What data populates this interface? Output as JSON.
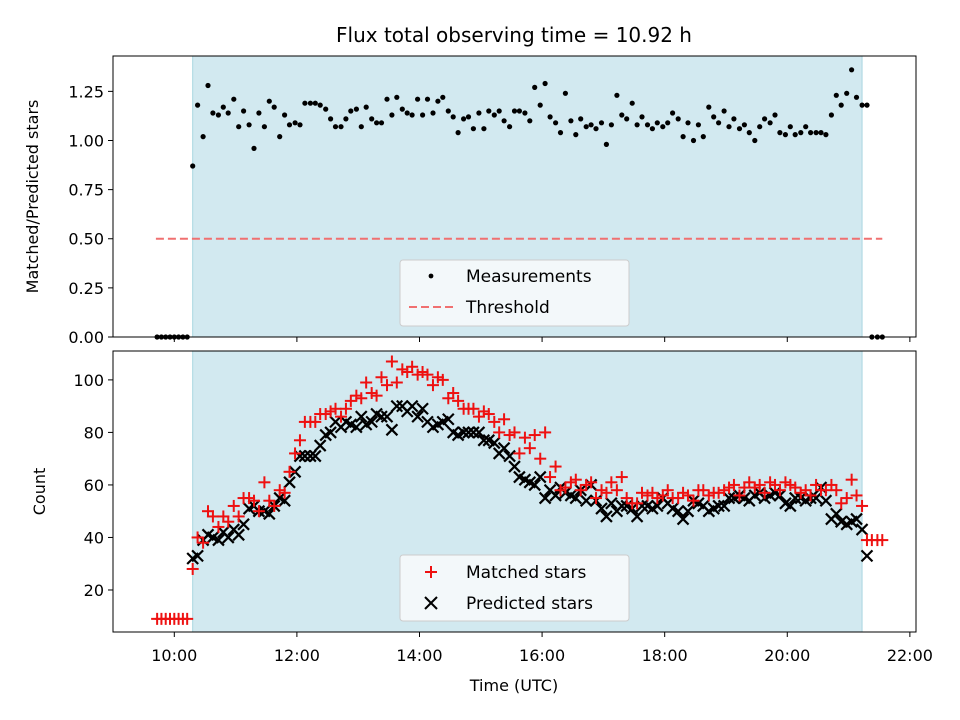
{
  "figure": {
    "title": "Flux total observing time = 10.92 h"
  },
  "colors": {
    "observing_window": "#d2e9f0",
    "observing_window_edge": "#a9d6e0",
    "measurements": "#000000",
    "threshold": "#f07070",
    "matched": "#ee1111",
    "predicted": "#000000"
  },
  "chart_data": [
    {
      "type": "scatter",
      "ylabel": "Matched/Predicted stars",
      "xlabel": "",
      "x_unit": "hours (UTC)",
      "xlim": [
        9.0,
        22.1
      ],
      "ylim": [
        0.0,
        1.43
      ],
      "yticks": [
        "0.00",
        "0.25",
        "0.50",
        "0.75",
        "1.00",
        "1.25"
      ],
      "grid": false,
      "legend": {
        "placement": "lower-center",
        "entries": [
          "Measurements",
          "Threshold"
        ]
      },
      "observing_window": [
        10.3,
        21.22
      ],
      "threshold": {
        "name": "Threshold",
        "value": 0.5,
        "x_range": [
          9.7,
          21.55
        ]
      },
      "series": [
        {
          "name": "Measurements",
          "x": [
            9.72,
            9.79,
            9.86,
            9.93,
            10.0,
            10.07,
            10.14,
            10.21,
            10.3,
            10.38,
            10.47,
            10.55,
            10.63,
            10.72,
            10.8,
            10.88,
            10.97,
            11.05,
            11.13,
            11.22,
            11.3,
            11.38,
            11.47,
            11.55,
            11.63,
            11.72,
            11.8,
            11.88,
            11.97,
            12.05,
            12.13,
            12.22,
            12.3,
            12.38,
            12.47,
            12.55,
            12.63,
            12.72,
            12.8,
            12.88,
            12.97,
            13.05,
            13.13,
            13.22,
            13.3,
            13.38,
            13.47,
            13.55,
            13.63,
            13.72,
            13.8,
            13.88,
            13.97,
            14.05,
            14.13,
            14.22,
            14.3,
            14.38,
            14.47,
            14.55,
            14.63,
            14.72,
            14.8,
            14.88,
            14.97,
            15.05,
            15.13,
            15.22,
            15.3,
            15.38,
            15.47,
            15.55,
            15.63,
            15.72,
            15.8,
            15.88,
            15.97,
            16.05,
            16.13,
            16.22,
            16.3,
            16.38,
            16.47,
            16.55,
            16.63,
            16.72,
            16.8,
            16.88,
            16.97,
            17.05,
            17.13,
            17.22,
            17.3,
            17.38,
            17.47,
            17.55,
            17.63,
            17.72,
            17.8,
            17.88,
            17.97,
            18.05,
            18.13,
            18.22,
            18.3,
            18.38,
            18.47,
            18.55,
            18.63,
            18.72,
            18.8,
            18.88,
            18.97,
            19.05,
            19.13,
            19.22,
            19.3,
            19.38,
            19.47,
            19.55,
            19.63,
            19.72,
            19.8,
            19.88,
            19.97,
            20.05,
            20.13,
            20.22,
            20.3,
            20.38,
            20.47,
            20.55,
            20.63,
            20.72,
            20.8,
            20.88,
            20.97,
            21.05,
            21.13,
            21.22,
            21.3,
            21.38,
            21.47,
            21.55
          ],
          "y": [
            0,
            0,
            0,
            0,
            0,
            0,
            0,
            0,
            0.87,
            1.18,
            1.02,
            1.28,
            1.14,
            1.13,
            1.17,
            1.14,
            1.21,
            1.07,
            1.15,
            1.08,
            0.96,
            1.14,
            1.07,
            1.2,
            1.17,
            1.02,
            1.13,
            1.08,
            1.09,
            1.08,
            1.19,
            1.19,
            1.19,
            1.18,
            1.16,
            1.11,
            1.07,
            1.07,
            1.11,
            1.15,
            1.16,
            1.07,
            1.17,
            1.11,
            1.09,
            1.09,
            1.21,
            1.13,
            1.22,
            1.16,
            1.14,
            1.13,
            1.21,
            1.13,
            1.21,
            1.14,
            1.2,
            1.22,
            1.15,
            1.12,
            1.04,
            1.11,
            1.12,
            1.06,
            1.14,
            1.06,
            1.15,
            1.13,
            1.15,
            1.1,
            1.07,
            1.15,
            1.15,
            1.14,
            1.1,
            1.27,
            1.18,
            1.29,
            1.12,
            1.09,
            1.04,
            1.24,
            1.1,
            1.03,
            1.11,
            1.07,
            1.08,
            1.06,
            1.09,
            0.98,
            1.08,
            1.23,
            1.13,
            1.11,
            1.19,
            1.08,
            1.12,
            1.08,
            1.06,
            1.09,
            1.07,
            1.09,
            1.14,
            1.11,
            1.02,
            1.09,
            1.0,
            1.08,
            1.02,
            1.17,
            1.12,
            1.09,
            1.15,
            1.07,
            1.11,
            1.06,
            1.08,
            1.04,
            1.0,
            1.07,
            1.11,
            1.09,
            1.13,
            1.04,
            1.03,
            1.07,
            1.03,
            1.04,
            1.07,
            1.04,
            1.04,
            1.04,
            1.03,
            1.13,
            1.23,
            1.18,
            1.24,
            1.36,
            1.22,
            1.18,
            1.18,
            0,
            0,
            0
          ]
        }
      ]
    },
    {
      "type": "scatter",
      "ylabel": "Count",
      "xlabel": "Time (UTC)",
      "x_unit": "hours (UTC)",
      "xlim": [
        9.0,
        22.1
      ],
      "ylim": [
        4,
        111
      ],
      "yticks": [
        "20",
        "40",
        "60",
        "80",
        "100"
      ],
      "xticks": [
        "10:00",
        "12:00",
        "14:00",
        "16:00",
        "18:00",
        "20:00",
        "22:00"
      ],
      "xtick_values": [
        10,
        12,
        14,
        16,
        18,
        20,
        22
      ],
      "grid": false,
      "legend": {
        "placement": "lower-center",
        "entries": [
          "Matched stars",
          "Predicted stars"
        ]
      },
      "observing_window": [
        10.3,
        21.22
      ],
      "x": [
        9.72,
        9.79,
        9.86,
        9.93,
        10.0,
        10.07,
        10.14,
        10.21,
        10.3,
        10.38,
        10.47,
        10.55,
        10.63,
        10.72,
        10.8,
        10.88,
        10.97,
        11.05,
        11.13,
        11.22,
        11.3,
        11.38,
        11.47,
        11.55,
        11.63,
        11.72,
        11.8,
        11.88,
        11.97,
        12.05,
        12.13,
        12.22,
        12.3,
        12.38,
        12.47,
        12.55,
        12.63,
        12.72,
        12.8,
        12.88,
        12.97,
        13.05,
        13.13,
        13.22,
        13.3,
        13.38,
        13.47,
        13.55,
        13.63,
        13.72,
        13.8,
        13.88,
        13.97,
        14.05,
        14.13,
        14.22,
        14.3,
        14.38,
        14.47,
        14.55,
        14.63,
        14.72,
        14.8,
        14.88,
        14.97,
        15.05,
        15.13,
        15.22,
        15.3,
        15.38,
        15.47,
        15.55,
        15.63,
        15.72,
        15.8,
        15.88,
        15.97,
        16.05,
        16.13,
        16.22,
        16.3,
        16.38,
        16.47,
        16.55,
        16.63,
        16.72,
        16.8,
        16.88,
        16.97,
        17.05,
        17.13,
        17.22,
        17.3,
        17.38,
        17.47,
        17.55,
        17.63,
        17.72,
        17.8,
        17.88,
        17.97,
        18.05,
        18.13,
        18.22,
        18.3,
        18.38,
        18.47,
        18.55,
        18.63,
        18.72,
        18.8,
        18.88,
        18.97,
        19.05,
        19.13,
        19.22,
        19.3,
        19.38,
        19.47,
        19.55,
        19.63,
        19.72,
        19.8,
        19.88,
        19.97,
        20.05,
        20.13,
        20.22,
        20.3,
        20.38,
        20.47,
        20.55,
        20.63,
        20.72,
        20.8,
        20.88,
        20.97,
        21.05,
        21.13,
        21.22,
        21.3,
        21.38,
        21.47,
        21.55
      ],
      "series": [
        {
          "name": "Matched stars",
          "marker": "+",
          "values": [
            9,
            9,
            9,
            9,
            9,
            9,
            9,
            9,
            28,
            40,
            38,
            50,
            48,
            44,
            48,
            46,
            52,
            48,
            55,
            55,
            54,
            50,
            61,
            54,
            52,
            58,
            57,
            65,
            72,
            77,
            84,
            84,
            84,
            87,
            87,
            88,
            89,
            86,
            89,
            92,
            94,
            93,
            99,
            95,
            94,
            101,
            98,
            107,
            99,
            104,
            103,
            105,
            102,
            103,
            102,
            98,
            101,
            100,
            93,
            95,
            92,
            89,
            89,
            89,
            86,
            88,
            87,
            84,
            80,
            85,
            79,
            80,
            72,
            78,
            74,
            79,
            70,
            80,
            63,
            67,
            58,
            59,
            61,
            62,
            58,
            60,
            61,
            55,
            58,
            57,
            61,
            58,
            63,
            55,
            53,
            53,
            57,
            56,
            57,
            55,
            56,
            58,
            55,
            55,
            57,
            56,
            54,
            58,
            58,
            56,
            57,
            57,
            58,
            59,
            60,
            56,
            59,
            61,
            59,
            60,
            57,
            61,
            60,
            58,
            61,
            60,
            59,
            57,
            58,
            56,
            60,
            58,
            58,
            60,
            58,
            53,
            55,
            62,
            56,
            52,
            39,
            39,
            39,
            39
          ],
          "y_ranges_note": ""
        },
        {
          "name": "Predicted stars",
          "marker": "x",
          "values": [
            null,
            null,
            null,
            null,
            null,
            null,
            null,
            null,
            32,
            33,
            39,
            41,
            40,
            39,
            42,
            40,
            43,
            41,
            45,
            51,
            52,
            50,
            50,
            49,
            52,
            55,
            54,
            61,
            65,
            71,
            71,
            71,
            71,
            75,
            79,
            80,
            84,
            82,
            84,
            83,
            82,
            86,
            83,
            84,
            87,
            86,
            86,
            81,
            90,
            90,
            88,
            90,
            86,
            89,
            84,
            82,
            83,
            84,
            85,
            80,
            79,
            80,
            80,
            80,
            80,
            77,
            77,
            76,
            72,
            74,
            71,
            67,
            63,
            62,
            61,
            60,
            63,
            55,
            58,
            56,
            59,
            57,
            56,
            55,
            58,
            54,
            60,
            54,
            51,
            48,
            53,
            50,
            52,
            52,
            51,
            48,
            52,
            52,
            51,
            52,
            55,
            53,
            51,
            50,
            47,
            50,
            54,
            53,
            52,
            50,
            51,
            52,
            52,
            55,
            55,
            56,
            55,
            54,
            56,
            57,
            55,
            56,
            57,
            56,
            53,
            52,
            55,
            55,
            54,
            55,
            55,
            59,
            54,
            47,
            49,
            46,
            45,
            46,
            47,
            43,
            33,
            null,
            null,
            null
          ]
        }
      ]
    }
  ]
}
